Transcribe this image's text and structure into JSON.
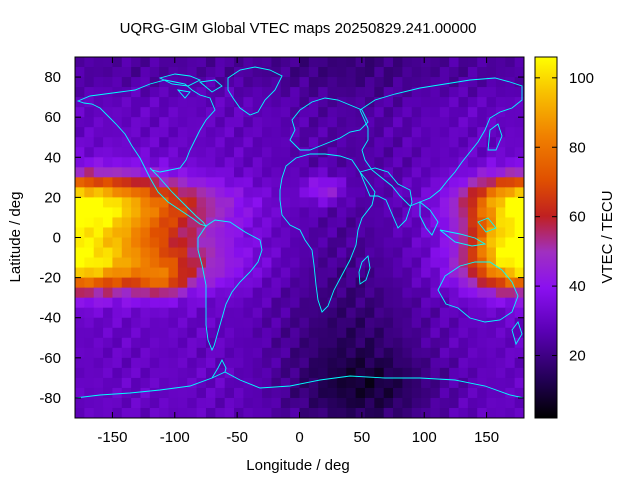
{
  "title": "UQRG-GIM Global VTEC maps 20250829.241.00000",
  "map": {
    "xlabel": "Longitude / deg",
    "ylabel": "Latitude / deg",
    "xlim": [
      -180,
      180
    ],
    "ylim": [
      -90,
      90
    ],
    "xticks": [
      "-150",
      "-100",
      "-50",
      "0",
      "50",
      "100",
      "150"
    ],
    "yticks": [
      "80",
      "60",
      "40",
      "20",
      "0",
      "-20",
      "-40",
      "-60",
      "-80"
    ],
    "coastline_color": "#00ffff"
  },
  "colorbar": {
    "label": "VTEC / TECU",
    "range": [
      2,
      106
    ],
    "ticks": [
      "100",
      "80",
      "60",
      "40",
      "20"
    ],
    "palette": [
      "#000000",
      "#200050",
      "#5a00b4",
      "#8a10f0",
      "#a030c0",
      "#c02020",
      "#e05000",
      "#f08000",
      "#f8c000",
      "#ffff00"
    ]
  }
}
